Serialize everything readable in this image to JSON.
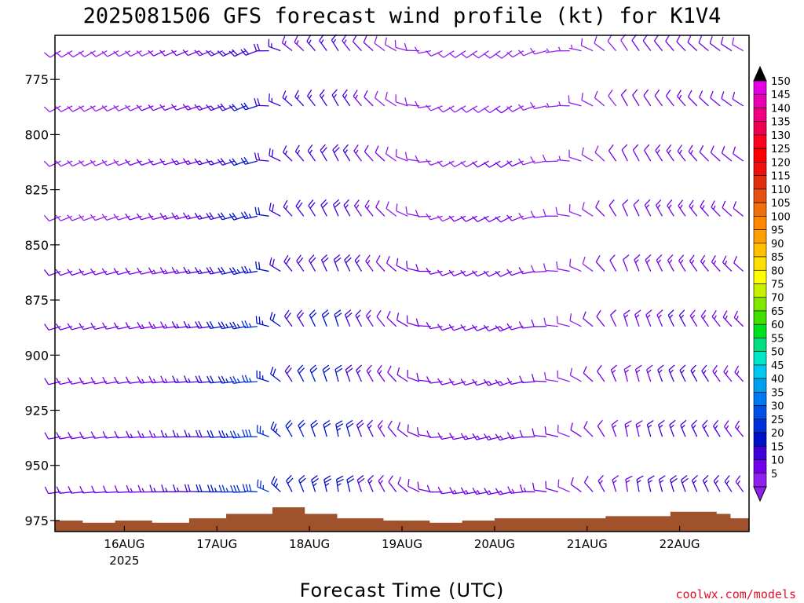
{
  "chart_data": {
    "type": "wind-barb profile",
    "title": "2025081506 GFS forecast wind profile (kt) for K1V4",
    "xlabel": "Forecast Time (UTC)",
    "ylabel": "",
    "credit": "coolwx.com/models",
    "y_axis": {
      "quantity": "pressure (hPa)",
      "inverted": true,
      "range": [
        755,
        980
      ],
      "ticks": [
        "775",
        "800",
        "825",
        "850",
        "875",
        "900",
        "925",
        "950",
        "975"
      ]
    },
    "x_axis": {
      "ticks": [
        {
          "label": "16AUG",
          "sublabel": "2025",
          "day": 16
        },
        {
          "label": "17AUG",
          "sublabel": "",
          "day": 17
        },
        {
          "label": "18AUG",
          "sublabel": "",
          "day": 18
        },
        {
          "label": "19AUG",
          "sublabel": "",
          "day": 19
        },
        {
          "label": "20AUG",
          "sublabel": "",
          "day": 20
        },
        {
          "label": "21AUG",
          "sublabel": "",
          "day": 21
        },
        {
          "label": "22AUG",
          "sublabel": "",
          "day": 22
        }
      ],
      "range_days": [
        15.25,
        22.75
      ]
    },
    "levels_hpa": [
      762,
      787,
      812,
      837,
      862,
      887,
      912,
      937,
      962
    ],
    "barb_columns_per_day": 8,
    "wind_regime_by_day": [
      {
        "day": 15.25,
        "dir_deg": 250,
        "speed_kt": 10
      },
      {
        "day": 16.0,
        "dir_deg": 255,
        "speed_kt": 10
      },
      {
        "day": 16.8,
        "dir_deg": 260,
        "speed_kt": 15
      },
      {
        "day": 17.4,
        "dir_deg": 255,
        "speed_kt": 25
      },
      {
        "day": 17.8,
        "dir_deg": 320,
        "speed_kt": 18
      },
      {
        "day": 18.3,
        "dir_deg": 340,
        "speed_kt": 20
      },
      {
        "day": 18.9,
        "dir_deg": 315,
        "speed_kt": 10
      },
      {
        "day": 19.5,
        "dir_deg": 250,
        "speed_kt": 10
      },
      {
        "day": 20.2,
        "dir_deg": 245,
        "speed_kt": 12
      },
      {
        "day": 20.8,
        "dir_deg": 280,
        "speed_kt": 8
      },
      {
        "day": 21.4,
        "dir_deg": 340,
        "speed_kt": 12
      },
      {
        "day": 22.0,
        "dir_deg": 330,
        "speed_kt": 15
      },
      {
        "day": 22.75,
        "dir_deg": 310,
        "speed_kt": 12
      }
    ],
    "surface_pressure_hpa": [
      {
        "day": 15.25,
        "p": 975
      },
      {
        "day": 15.55,
        "p": 976
      },
      {
        "day": 15.9,
        "p": 975
      },
      {
        "day": 16.3,
        "p": 976
      },
      {
        "day": 16.7,
        "p": 974
      },
      {
        "day": 17.1,
        "p": 972
      },
      {
        "day": 17.6,
        "p": 969
      },
      {
        "day": 17.95,
        "p": 972
      },
      {
        "day": 18.3,
        "p": 974
      },
      {
        "day": 18.8,
        "p": 975
      },
      {
        "day": 19.3,
        "p": 976
      },
      {
        "day": 19.65,
        "p": 975
      },
      {
        "day": 20.0,
        "p": 974
      },
      {
        "day": 20.6,
        "p": 974
      },
      {
        "day": 21.2,
        "p": 973
      },
      {
        "day": 21.9,
        "p": 971
      },
      {
        "day": 22.4,
        "p": 972
      },
      {
        "day": 22.55,
        "p": 974
      },
      {
        "day": 22.75,
        "p": 972
      }
    ],
    "colorbar": {
      "ticks": [
        150,
        145,
        140,
        135,
        130,
        125,
        120,
        115,
        110,
        105,
        100,
        95,
        90,
        85,
        80,
        75,
        70,
        65,
        60,
        55,
        50,
        45,
        40,
        35,
        30,
        25,
        20,
        15,
        10,
        5
      ],
      "colors": [
        "#e400e4",
        "#e800b0",
        "#f00080",
        "#f00050",
        "#ff0020",
        "#ff0000",
        "#f01010",
        "#e03010",
        "#e85010",
        "#f07010",
        "#ff8800",
        "#ffa000",
        "#ffc000",
        "#ffe000",
        "#ffff00",
        "#c8f000",
        "#80e800",
        "#40e000",
        "#00e020",
        "#00e080",
        "#00e8c8",
        "#00c8f0",
        "#00a0f0",
        "#0078f0",
        "#0050e8",
        "#0030d8",
        "#0010c8",
        "#4000d8",
        "#7000e8",
        "#9020f0"
      ],
      "unit": "kt"
    },
    "grid": false
  }
}
